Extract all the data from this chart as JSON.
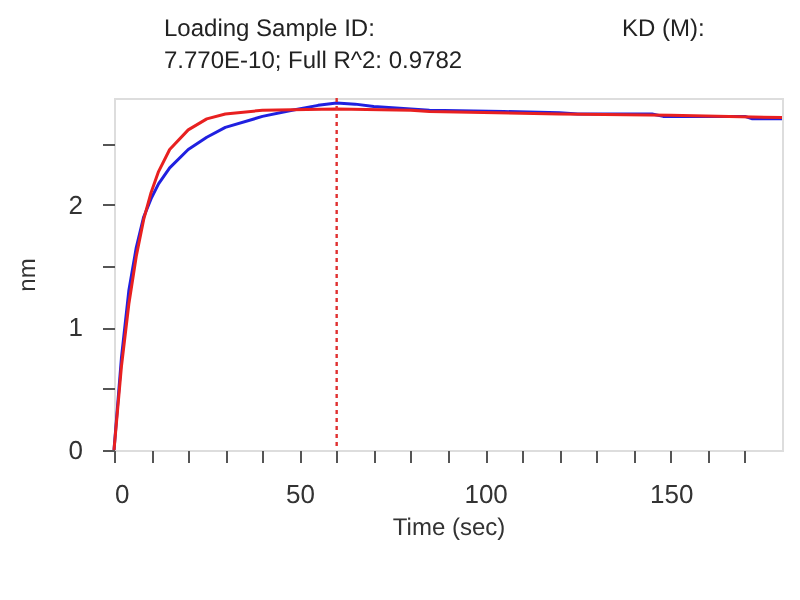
{
  "chart_data": {
    "type": "line",
    "title": "Loading Sample ID:",
    "subtitle": "7.770E-10; Full R^2: 0.9782",
    "annotations": [
      "KD (M):"
    ],
    "xlabel": "Time (sec)",
    "ylabel": "nm",
    "xlim": [
      0,
      180
    ],
    "ylim": [
      0,
      2.87
    ],
    "xticks": [
      0,
      {
        "value": 10,
        "label": null
      },
      {
        "value": 20,
        "label": null
      },
      {
        "value": 30,
        "label": null
      },
      {
        "value": 40,
        "label": null
      },
      50,
      {
        "value": 60,
        "label": null
      },
      {
        "value": 70,
        "label": null
      },
      {
        "value": 80,
        "label": null
      },
      {
        "value": 90,
        "label": null
      },
      100,
      {
        "value": 110,
        "label": null
      },
      {
        "value": 120,
        "label": null
      },
      {
        "value": 130,
        "label": null
      },
      {
        "value": 140,
        "label": null
      },
      150,
      {
        "value": 160,
        "label": null
      },
      {
        "value": 170,
        "label": null
      }
    ],
    "yticks": [
      0,
      {
        "value": 0.5,
        "label": null
      },
      1,
      {
        "value": 1.5,
        "label": null
      },
      2,
      {
        "value": 2.5,
        "label": null
      }
    ],
    "grid": false,
    "line_style": "solid",
    "marker": "none",
    "ref_lines": [
      {
        "axis": "x",
        "value": 60,
        "label": null,
        "color": "#e03030",
        "line_style": "dotted"
      }
    ],
    "series": [
      {
        "color": "#2020e0",
        "x": [
          0,
          2,
          4,
          6,
          8,
          10,
          12,
          15,
          20,
          25,
          30,
          40,
          48,
          55,
          60,
          65,
          70,
          75,
          85,
          105,
          120,
          125,
          145,
          148,
          155,
          170,
          172,
          180
        ],
        "values": [
          0,
          0.75,
          1.3,
          1.65,
          1.9,
          2.05,
          2.17,
          2.3,
          2.45,
          2.55,
          2.63,
          2.72,
          2.77,
          2.81,
          2.83,
          2.82,
          2.8,
          2.79,
          2.77,
          2.76,
          2.75,
          2.74,
          2.74,
          2.72,
          2.72,
          2.72,
          2.7,
          2.7
        ]
      },
      {
        "color": "#e82020",
        "x": [
          0,
          2,
          4,
          6,
          8,
          10,
          12,
          15,
          20,
          25,
          30,
          40,
          60,
          80,
          85,
          120,
          150,
          180
        ],
        "values": [
          0,
          0.68,
          1.19,
          1.58,
          1.88,
          2.1,
          2.27,
          2.45,
          2.61,
          2.7,
          2.74,
          2.77,
          2.78,
          2.77,
          2.76,
          2.74,
          2.73,
          2.71
        ]
      }
    ]
  }
}
